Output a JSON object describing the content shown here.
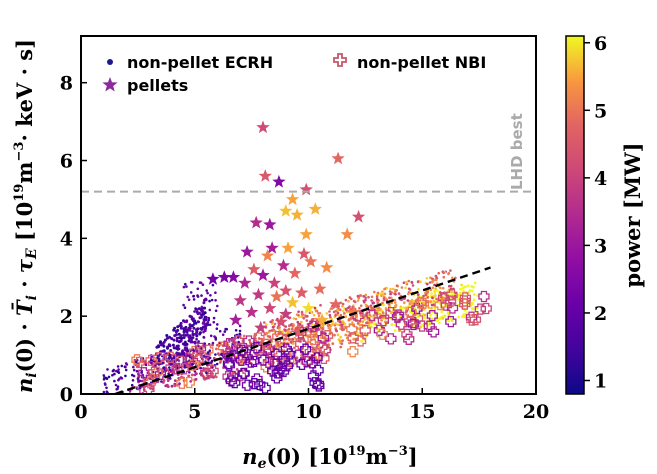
{
  "chart_data": {
    "type": "scatter",
    "xlabel": "n_e(0) [10^19 m^-3]",
    "ylabel": "n_i(0) · T̄_i · τ_E [10^19 m^-3 · keV · s]",
    "xlim": [
      0,
      20
    ],
    "ylim": [
      0,
      9.2
    ],
    "x_ticks": [
      "0",
      "5",
      "10",
      "15",
      "20"
    ],
    "y_ticks": [
      "0",
      "2",
      "4",
      "6",
      "8"
    ],
    "colorbar": {
      "label": "power [MW]",
      "range": [
        0.8,
        6.1
      ],
      "ticks": [
        "1",
        "2",
        "3",
        "4",
        "5",
        "6"
      ],
      "colormap": "plasma"
    },
    "legend": {
      "placement": "top-left",
      "entries": [
        {
          "label": "non-pellet ECRH",
          "marker": "dot",
          "color": "#1f1a8c"
        },
        {
          "label": "non-pellet NBI",
          "marker": "plus",
          "color": "#c8566b"
        },
        {
          "label": "pellets",
          "marker": "star",
          "color": "#8a2a9c"
        }
      ]
    },
    "reference_line": {
      "label": "LHD best",
      "y": 5.2,
      "style": "dashed",
      "color": "#aaaaaa"
    },
    "fit_line": {
      "x": [
        1.5,
        18.0
      ],
      "y": [
        0.0,
        3.25
      ],
      "style": "dashed",
      "color": "#000000"
    },
    "series": [
      {
        "name": "pellets",
        "marker": "star",
        "points": [
          {
            "x": 8.0,
            "y": 6.85,
            "p": 4.2
          },
          {
            "x": 11.3,
            "y": 6.05,
            "p": 4.8
          },
          {
            "x": 8.1,
            "y": 5.6,
            "p": 4.5
          },
          {
            "x": 8.7,
            "y": 5.45,
            "p": 2.5
          },
          {
            "x": 9.9,
            "y": 5.25,
            "p": 4.3
          },
          {
            "x": 9.3,
            "y": 5.0,
            "p": 5.5
          },
          {
            "x": 9.0,
            "y": 4.7,
            "p": 5.7
          },
          {
            "x": 9.5,
            "y": 4.6,
            "p": 5.6
          },
          {
            "x": 12.2,
            "y": 4.55,
            "p": 4.3
          },
          {
            "x": 10.3,
            "y": 4.75,
            "p": 5.6
          },
          {
            "x": 7.7,
            "y": 4.4,
            "p": 3.5
          },
          {
            "x": 8.3,
            "y": 4.35,
            "p": 3.0
          },
          {
            "x": 11.7,
            "y": 4.1,
            "p": 5.3
          },
          {
            "x": 9.9,
            "y": 4.1,
            "p": 5.5
          },
          {
            "x": 7.3,
            "y": 3.65,
            "p": 3.0
          },
          {
            "x": 8.4,
            "y": 3.75,
            "p": 3.2
          },
          {
            "x": 9.1,
            "y": 3.75,
            "p": 5.5
          },
          {
            "x": 8.2,
            "y": 3.55,
            "p": 5.2
          },
          {
            "x": 9.8,
            "y": 3.6,
            "p": 4.5
          },
          {
            "x": 10.1,
            "y": 3.4,
            "p": 5.0
          },
          {
            "x": 8.9,
            "y": 3.3,
            "p": 3.5
          },
          {
            "x": 7.6,
            "y": 3.2,
            "p": 4.6
          },
          {
            "x": 8.0,
            "y": 3.05,
            "p": 3.0
          },
          {
            "x": 9.4,
            "y": 3.1,
            "p": 4.8
          },
          {
            "x": 10.8,
            "y": 3.25,
            "p": 5.3
          },
          {
            "x": 6.3,
            "y": 3.0,
            "p": 2.4
          },
          {
            "x": 6.7,
            "y": 3.0,
            "p": 2.6
          },
          {
            "x": 5.8,
            "y": 2.95,
            "p": 2.3
          },
          {
            "x": 7.2,
            "y": 2.85,
            "p": 3.4
          },
          {
            "x": 8.5,
            "y": 2.85,
            "p": 4.0
          },
          {
            "x": 9.0,
            "y": 2.65,
            "p": 4.4
          },
          {
            "x": 7.8,
            "y": 2.55,
            "p": 3.8
          },
          {
            "x": 10.5,
            "y": 2.7,
            "p": 4.9
          },
          {
            "x": 9.7,
            "y": 2.6,
            "p": 4.6
          },
          {
            "x": 8.6,
            "y": 2.5,
            "p": 5.0
          },
          {
            "x": 7.0,
            "y": 2.4,
            "p": 3.7
          },
          {
            "x": 9.3,
            "y": 2.35,
            "p": 5.7
          },
          {
            "x": 11.2,
            "y": 2.3,
            "p": 4.8
          },
          {
            "x": 8.3,
            "y": 2.2,
            "p": 4.1
          },
          {
            "x": 10.0,
            "y": 2.2,
            "p": 5.9
          },
          {
            "x": 7.5,
            "y": 2.1,
            "p": 3.6
          },
          {
            "x": 9.0,
            "y": 2.05,
            "p": 3.9
          },
          {
            "x": 12.0,
            "y": 2.1,
            "p": 5.1
          },
          {
            "x": 6.8,
            "y": 1.9,
            "p": 3.2
          },
          {
            "x": 8.8,
            "y": 1.85,
            "p": 4.3
          },
          {
            "x": 10.6,
            "y": 1.9,
            "p": 5.6
          },
          {
            "x": 7.9,
            "y": 1.7,
            "p": 3.9
          },
          {
            "x": 9.6,
            "y": 1.6,
            "p": 4.7
          }
        ]
      }
    ]
  }
}
